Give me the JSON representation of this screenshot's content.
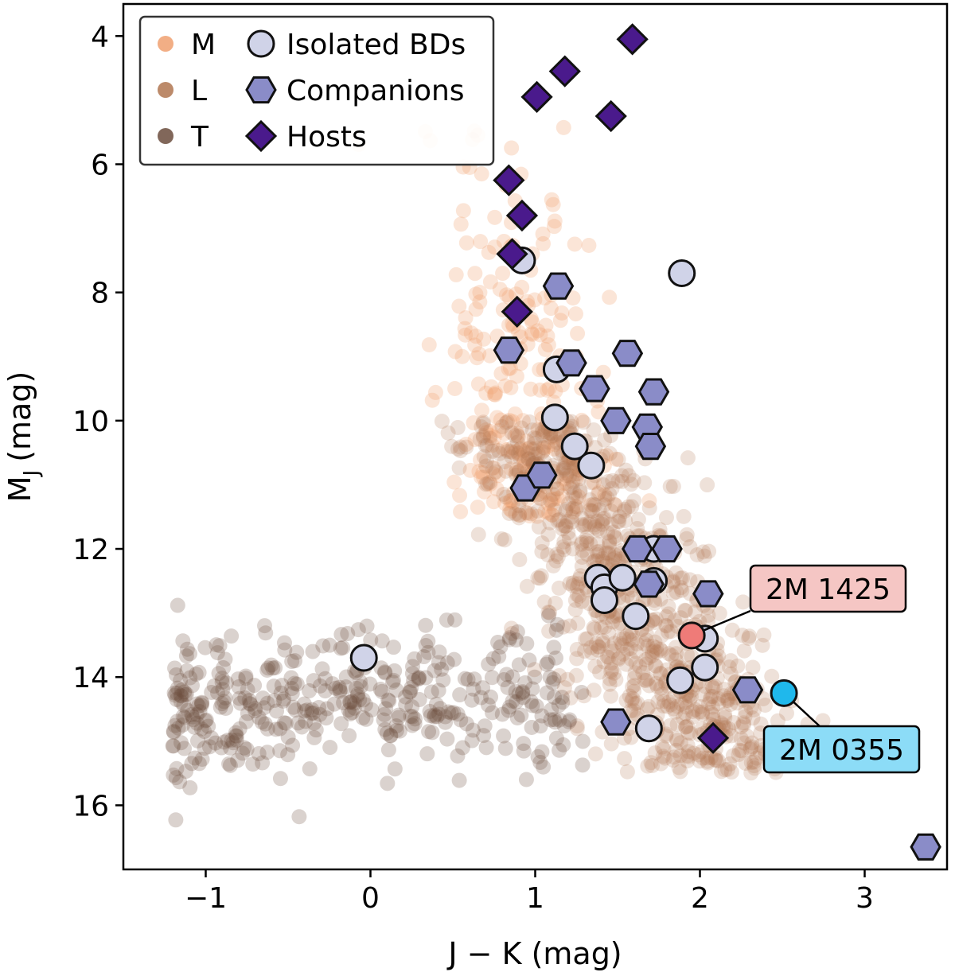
{
  "chart_data": {
    "type": "scatter",
    "title": "",
    "xlabel": "J − K (mag)",
    "ylabel_main": "M",
    "ylabel_sub": "J",
    "ylabel_unit": "(mag)",
    "xlim": [
      -1.5,
      3.5
    ],
    "ylim": [
      17.0,
      3.5
    ],
    "x_ticks": [
      {
        "value": -1,
        "label": "−1"
      },
      {
        "value": 0,
        "label": "0"
      },
      {
        "value": 1,
        "label": "1"
      },
      {
        "value": 2,
        "label": "2"
      },
      {
        "value": 3,
        "label": "3"
      }
    ],
    "y_ticks": [
      {
        "value": 4,
        "label": "4"
      },
      {
        "value": 6,
        "label": "6"
      },
      {
        "value": 8,
        "label": "8"
      },
      {
        "value": 10,
        "label": "10"
      },
      {
        "value": 12,
        "label": "12"
      },
      {
        "value": 14,
        "label": "14"
      },
      {
        "value": 16,
        "label": "16"
      }
    ],
    "grid": false,
    "legend_position": "top-left",
    "colors": {
      "M": "#f0a070",
      "L": "#b07550",
      "T": "#6b4c3d",
      "isolated": "#d0d3e8",
      "companion": "#8a8cc8",
      "host": "#4a1a8c",
      "ann_1425_point": "#ef7b78",
      "ann_1425_box": "#f5c6c4",
      "ann_0355_point": "#1fb8ec",
      "ann_0355_box": "#8cdcf7"
    },
    "legend": [
      {
        "key": "M",
        "label": "M",
        "shape": "dot"
      },
      {
        "key": "L",
        "label": "L",
        "shape": "dot"
      },
      {
        "key": "T",
        "label": "T",
        "shape": "dot"
      },
      {
        "key": "isolated",
        "label": "Isolated BDs",
        "shape": "circle"
      },
      {
        "key": "companion",
        "label": "Companions",
        "shape": "hexagon"
      },
      {
        "key": "host",
        "label": "Hosts",
        "shape": "diamond"
      }
    ],
    "background_populations": [
      {
        "name": "M",
        "description": "field M dwarfs, faint translucent",
        "center_x": 1.0,
        "spread_x": 0.25,
        "y_min": 5.0,
        "y_max": 11.5,
        "count": 260
      },
      {
        "name": "L",
        "description": "field L dwarfs, dense translucent band",
        "center_x": 1.4,
        "spread_x": 0.28,
        "y_min": 10.0,
        "y_max": 15.5,
        "count": 900
      },
      {
        "name": "T",
        "description": "field T dwarfs, translucent",
        "x_min": -1.2,
        "x_max": 1.3,
        "y_min": 13.0,
        "y_max": 17.0,
        "count": 420
      }
    ],
    "series": [
      {
        "name": "Isolated BDs",
        "marker": "circle",
        "x": [
          0.92,
          1.89,
          1.13,
          1.12,
          1.24,
          1.34,
          1.38,
          1.42,
          1.42,
          1.53,
          1.61,
          1.72,
          1.72,
          2.03,
          2.03,
          1.88,
          1.69,
          -0.04
        ],
        "y": [
          7.5,
          7.7,
          9.2,
          9.95,
          10.4,
          10.7,
          12.45,
          12.6,
          12.8,
          12.45,
          13.05,
          12.0,
          12.5,
          13.4,
          13.85,
          14.05,
          14.8,
          13.7
        ]
      },
      {
        "name": "Companions",
        "marker": "hexagon",
        "x": [
          1.14,
          0.84,
          1.22,
          1.56,
          1.36,
          1.72,
          1.49,
          1.68,
          1.7,
          0.94,
          1.04,
          1.62,
          1.8,
          1.69,
          2.05,
          2.29,
          1.49,
          3.37
        ],
        "y": [
          7.9,
          8.9,
          9.1,
          8.95,
          9.5,
          9.55,
          10.0,
          10.1,
          10.4,
          11.05,
          10.85,
          12.0,
          12.0,
          12.55,
          12.7,
          14.2,
          14.7,
          16.65
        ]
      },
      {
        "name": "Hosts",
        "marker": "diamond",
        "x": [
          1.59,
          1.18,
          1.01,
          1.46,
          0.84,
          0.92,
          0.86,
          0.89,
          2.08
        ],
        "y": [
          4.05,
          4.55,
          4.95,
          5.25,
          6.25,
          6.8,
          7.4,
          8.3,
          14.95
        ]
      }
    ],
    "annotations": [
      {
        "label": "2M 1425",
        "x": 1.95,
        "y": 13.35,
        "color_key": "ann_1425"
      },
      {
        "label": "2M 0355",
        "x": 2.51,
        "y": 14.25,
        "color_key": "ann_0355"
      }
    ]
  }
}
